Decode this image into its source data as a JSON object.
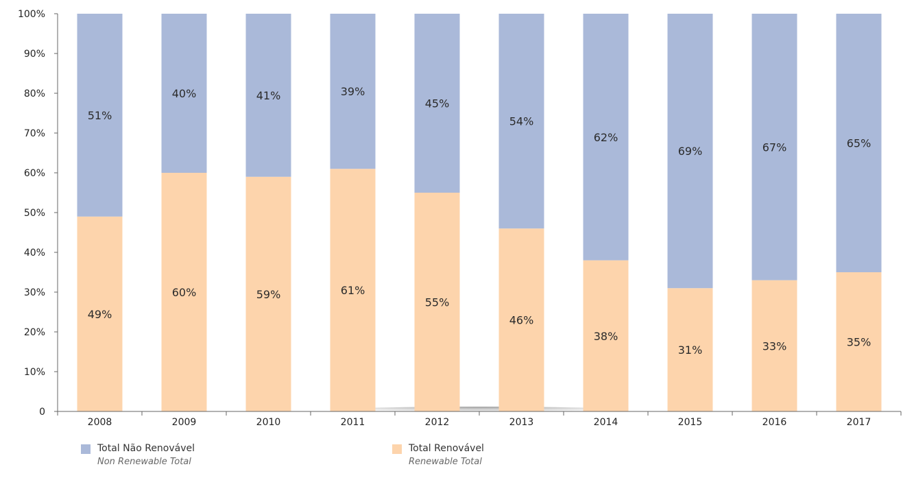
{
  "chart_data": {
    "type": "bar",
    "stacked": true,
    "categories": [
      "2008",
      "2009",
      "2010",
      "2011",
      "2012",
      "2013",
      "2014",
      "2015",
      "2016",
      "2017"
    ],
    "series": [
      {
        "name": "Total Renovável",
        "subname": "Renewable Total",
        "color": "#fdd4ac",
        "values": [
          49,
          60,
          59,
          61,
          55,
          46,
          38,
          31,
          33,
          35
        ],
        "labels": [
          "49%",
          "60%",
          "59%",
          "61%",
          "55%",
          "46%",
          "38%",
          "31%",
          "33%",
          "35%"
        ]
      },
      {
        "name": "Total Não Renovável",
        "subname": "Non Renewable Total",
        "color": "#aab9d9",
        "values": [
          51,
          40,
          41,
          39,
          45,
          54,
          62,
          69,
          67,
          65
        ],
        "labels": [
          "51%",
          "40%",
          "41%",
          "39%",
          "45%",
          "54%",
          "62%",
          "69%",
          "67%",
          "65%"
        ]
      }
    ],
    "ylim": [
      0,
      100
    ],
    "yticks": [
      0,
      10,
      20,
      30,
      40,
      50,
      60,
      70,
      80,
      90,
      100
    ],
    "ytick_labels": [
      "0",
      "10%",
      "20%",
      "30%",
      "40%",
      "50%",
      "60%",
      "70%",
      "80%",
      "90%",
      "100%"
    ],
    "grid": false,
    "legend_position": "bottom"
  }
}
